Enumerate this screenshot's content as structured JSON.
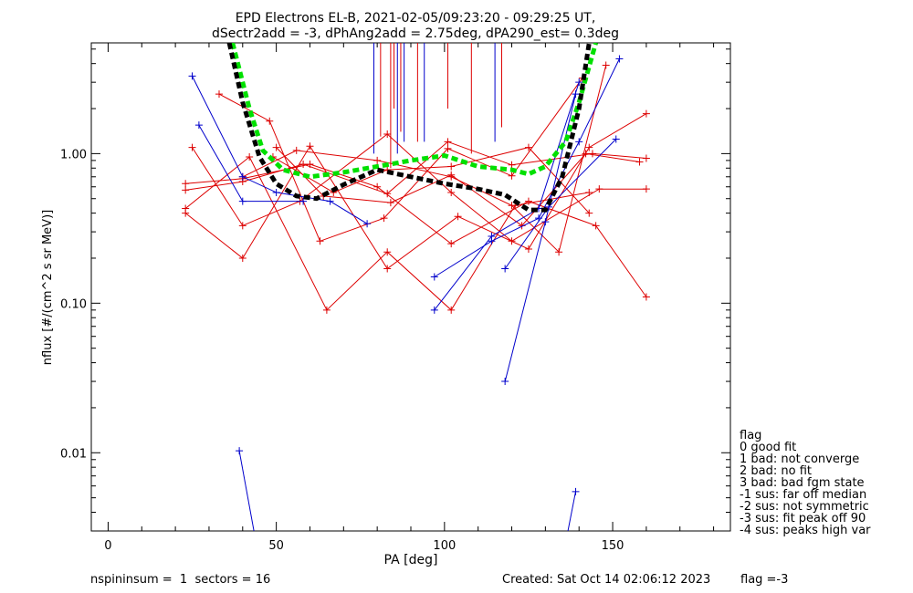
{
  "title_line1": "EPD Electrons EL-B, 2021-02-05/09:23:20 - 09:29:25 UT,",
  "title_line2": "dSectr2add = -3, dPhAng2add = 2.75deg, dPA290_est=   0.3deg",
  "footer_left": "nspininsum =  1  sectors = 16",
  "footer_created": "Created: Sat Oct 14 02:06:12 2023",
  "footer_flag": "flag =-3",
  "flag_legend": {
    "title": "flag",
    "items": [
      " 0 good fit",
      " 1 bad: not converge",
      " 2 bad: no fit",
      " 3 bad: bad fgm state",
      "-1 sus: far off median",
      "-2 sus: not symmetric",
      "-3 sus: fit peak off 90",
      "-4 sus: peaks high var"
    ]
  },
  "chart_data": {
    "type": "line",
    "title": "EPD Electrons EL-B, 2021-02-05/09:23:20 - 09:29:25 UT,",
    "xlabel": "PA [deg]",
    "ylabel": "nflux [#/(cm^2 s sr MeV)]",
    "xlim": [
      -5,
      185
    ],
    "ylim": [
      0.003,
      5.5
    ],
    "yscale": "log",
    "xticks": [
      0,
      50,
      100,
      150
    ],
    "yticks": [
      0.01,
      0.1,
      1.0
    ],
    "ytick_labels": [
      "0.01",
      "0.10",
      "1.00"
    ],
    "colors": {
      "red": "#dd0000",
      "blue": "#0000cc",
      "black": "#000000",
      "green": "#00e000"
    },
    "red_series": [
      [
        [
          25,
          1.1
        ],
        [
          40,
          0.33
        ],
        [
          57,
          0.48
        ],
        [
          83,
          1.35
        ],
        [
          102,
          0.55
        ],
        [
          120,
          0.26
        ],
        [
          146,
          0.58
        ],
        [
          160,
          0.58
        ]
      ],
      [
        [
          23,
          0.63
        ],
        [
          40,
          0.68
        ],
        [
          60,
          0.85
        ],
        [
          80,
          0.6
        ],
        [
          102,
          0.25
        ],
        [
          125,
          0.48
        ],
        [
          145,
          0.33
        ],
        [
          160,
          0.11
        ]
      ],
      [
        [
          23,
          0.43
        ],
        [
          42,
          0.95
        ],
        [
          65,
          0.09
        ],
        [
          83,
          0.22
        ],
        [
          102,
          0.09
        ],
        [
          121,
          0.45
        ],
        [
          143,
          0.55
        ]
      ],
      [
        [
          23,
          0.4
        ],
        [
          40,
          0.2
        ],
        [
          60,
          1.12
        ],
        [
          83,
          0.17
        ],
        [
          104,
          0.38
        ],
        [
          125,
          0.23
        ],
        [
          143,
          1.1
        ],
        [
          160,
          1.85
        ]
      ],
      [
        [
          23,
          0.57
        ],
        [
          40,
          0.65
        ],
        [
          58,
          0.85
        ],
        [
          83,
          0.54
        ],
        [
          101,
          1.2
        ],
        [
          120,
          0.84
        ],
        [
          144,
          1.0
        ],
        [
          160,
          0.93
        ]
      ],
      [
        [
          33,
          2.5
        ],
        [
          48,
          1.65
        ],
        [
          63,
          0.26
        ],
        [
          82,
          0.37
        ],
        [
          101,
          1.08
        ],
        [
          120,
          0.71
        ],
        [
          141,
          3.2
        ]
      ],
      [
        [
          49,
          0.95
        ],
        [
          67,
          0.55
        ],
        [
          83,
          0.78
        ],
        [
          102,
          0.82
        ],
        [
          125,
          1.1
        ],
        [
          143,
          0.4
        ]
      ],
      [
        [
          50,
          1.1
        ],
        [
          64,
          0.52
        ],
        [
          84,
          0.47
        ],
        [
          102,
          0.72
        ],
        [
          123,
          0.33
        ],
        [
          142,
          1.0
        ],
        [
          158,
          0.88
        ]
      ],
      [
        [
          40,
          0.7
        ],
        [
          56,
          1.05
        ],
        [
          80,
          0.9
        ],
        [
          102,
          0.7
        ],
        [
          120,
          0.45
        ],
        [
          134,
          0.22
        ],
        [
          148,
          3.9
        ]
      ]
    ],
    "blue_series": [
      [
        [
          25,
          3.3
        ],
        [
          40,
          0.7
        ],
        [
          50,
          0.55
        ],
        [
          66,
          0.48
        ],
        [
          77,
          0.34
        ]
      ],
      [
        [
          27,
          1.55
        ],
        [
          40,
          0.48
        ],
        [
          58,
          0.48
        ]
      ],
      [
        [
          97,
          0.09
        ],
        [
          114,
          0.28
        ],
        [
          128,
          0.43
        ],
        [
          140,
          3.0
        ]
      ],
      [
        [
          97,
          0.15
        ],
        [
          114,
          0.26
        ],
        [
          128,
          0.37
        ],
        [
          140,
          1.2
        ],
        [
          152,
          4.3
        ]
      ],
      [
        [
          118,
          0.03
        ],
        [
          130,
          0.35
        ],
        [
          139,
          2.5
        ]
      ],
      [
        [
          118,
          0.17
        ],
        [
          131,
          0.44
        ],
        [
          151,
          1.25
        ]
      ],
      [
        [
          39,
          0.0103
        ],
        [
          44,
          0.0025
        ]
      ],
      [
        [
          136,
          0.0025
        ],
        [
          139,
          0.0055
        ]
      ]
    ],
    "black_fit": [
      [
        36,
        5.5
      ],
      [
        40,
        2.2
      ],
      [
        45,
        0.95
      ],
      [
        50,
        0.63
      ],
      [
        56,
        0.52
      ],
      [
        62,
        0.5
      ],
      [
        70,
        0.62
      ],
      [
        80,
        0.78
      ],
      [
        90,
        0.7
      ],
      [
        100,
        0.63
      ],
      [
        110,
        0.58
      ],
      [
        118,
        0.53
      ],
      [
        125,
        0.42
      ],
      [
        130,
        0.42
      ],
      [
        135,
        0.7
      ],
      [
        140,
        2.0
      ],
      [
        143,
        5.5
      ]
    ],
    "green_fit": [
      [
        37,
        5.5
      ],
      [
        42,
        2.0
      ],
      [
        46,
        1.05
      ],
      [
        52,
        0.78
      ],
      [
        60,
        0.7
      ],
      [
        70,
        0.75
      ],
      [
        80,
        0.82
      ],
      [
        90,
        0.9
      ],
      [
        100,
        0.97
      ],
      [
        110,
        0.82
      ],
      [
        120,
        0.78
      ],
      [
        125,
        0.73
      ],
      [
        130,
        0.82
      ],
      [
        136,
        1.2
      ],
      [
        140,
        2.2
      ],
      [
        145,
        5.5
      ]
    ],
    "red_vlines": [
      [
        60,
        5.5
      ],
      [
        81,
        1.3
      ],
      [
        84,
        0.8
      ],
      [
        85,
        2.0
      ],
      [
        87,
        1.4
      ],
      [
        90,
        5.5
      ],
      [
        92,
        1.2
      ],
      [
        100,
        5.5
      ],
      [
        101,
        2.0
      ],
      [
        108,
        1.0
      ],
      [
        117,
        1.5
      ]
    ],
    "blue_vlines": [
      [
        79,
        1.0
      ],
      [
        86,
        1.0
      ],
      [
        88,
        1.2
      ],
      [
        94,
        1.2
      ],
      [
        115,
        1.2
      ]
    ]
  }
}
